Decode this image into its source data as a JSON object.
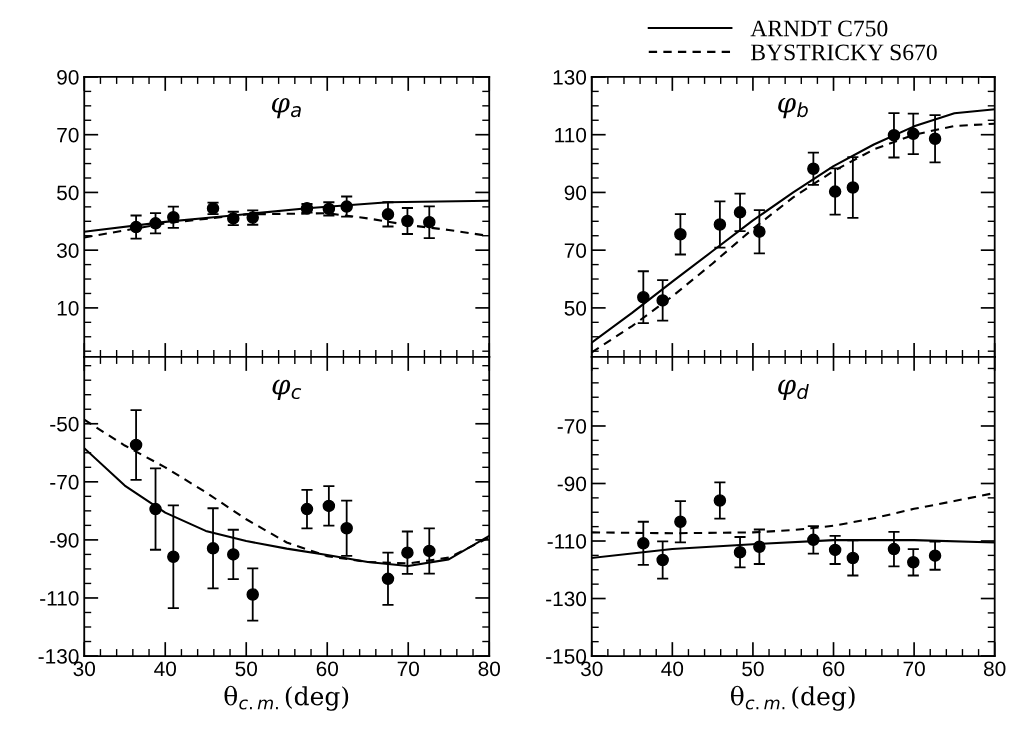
{
  "chart_data": [
    {
      "type": "scatter",
      "title": "φ$_{a}$",
      "xlim": [
        30,
        80
      ],
      "xticks": [
        30,
        40,
        50,
        60,
        70,
        80
      ],
      "ylim": [
        -7,
        90
      ],
      "yticks": [
        10,
        30,
        50,
        70,
        90
      ],
      "tick_labels": "y",
      "grid": false,
      "legend": false,
      "series": [
        {
          "marker": "circle",
          "color": "#000000",
          "x": [
            36.4,
            38.8,
            41.0,
            45.9,
            48.4,
            50.8,
            57.5,
            60.2,
            62.4,
            67.5,
            69.9,
            72.6
          ],
          "values": [
            38.0,
            39.3,
            41.4,
            44.5,
            41.0,
            41.3,
            44.5,
            44.3,
            45.1,
            42.4,
            40.1,
            39.7
          ],
          "errors": [
            4,
            3.5,
            3.7,
            2,
            2.3,
            2.5,
            1.5,
            2.3,
            3.5,
            4.2,
            4.5,
            5.5
          ]
        },
        {
          "type": "line",
          "line_style": "solid",
          "color": "#000000",
          "x": [
            30,
            40,
            46,
            57.5,
            67.5,
            80
          ],
          "values": [
            36.4,
            39.8,
            41.4,
            44.5,
            46.6,
            47.1
          ]
        },
        {
          "type": "line",
          "line_style": "dashed",
          "color": "#000000",
          "x": [
            30,
            40,
            50,
            60,
            65,
            70,
            75,
            80
          ],
          "values": [
            34.4,
            39.3,
            42.4,
            42.8,
            41.0,
            38.7,
            37.0,
            34.9
          ]
        }
      ]
    },
    {
      "type": "scatter",
      "title": "φ$_{b}$",
      "xlim": [
        30,
        80
      ],
      "xticks": [
        30,
        40,
        50,
        60,
        70,
        80
      ],
      "ylim": [
        33,
        130
      ],
      "yticks": [
        50,
        70,
        90,
        110,
        130
      ],
      "tick_labels": "y",
      "grid": false,
      "legend": "top",
      "series": [
        {
          "marker": "circle",
          "color": "#000000",
          "x": [
            36.4,
            38.8,
            41.0,
            45.9,
            48.4,
            50.8,
            57.5,
            60.2,
            62.4,
            67.5,
            69.9,
            72.6
          ],
          "values": [
            53.7,
            52.6,
            75.5,
            78.9,
            83.1,
            76.4,
            98.2,
            90.3,
            91.7,
            109.8,
            110.3,
            108.6
          ],
          "errors": [
            9,
            7,
            7,
            8,
            6.5,
            7.5,
            5.6,
            8,
            10.5,
            7.7,
            7,
            8.2
          ]
        },
        {
          "type": "line",
          "name": "ARNDT C750",
          "line_style": "solid",
          "color": "#000000",
          "x": [
            30,
            35,
            40,
            45,
            50,
            55,
            60,
            65,
            70,
            75,
            80
          ],
          "values": [
            38.0,
            48.3,
            59.1,
            69.7,
            80.3,
            90.0,
            99.1,
            106.6,
            112.9,
            117.4,
            118.8
          ]
        },
        {
          "type": "line",
          "name": "BYSTRICKY S670",
          "line_style": "dashed",
          "color": "#000000",
          "x": [
            30,
            35,
            40,
            45,
            50,
            55,
            60,
            65,
            70,
            75,
            80
          ],
          "values": [
            34.6,
            43.7,
            54.0,
            65.4,
            77.4,
            88.3,
            97.4,
            104.9,
            110.0,
            113.0,
            113.8
          ]
        }
      ]
    },
    {
      "type": "scatter",
      "title": "φ$_{c}$",
      "xlabel": "θ$_{c.m.}$(deg)",
      "xlim": [
        30,
        80
      ],
      "xticks": [
        30,
        40,
        50,
        60,
        70,
        80
      ],
      "ylim": [
        -130,
        -27
      ],
      "yticks": [
        -130,
        -110,
        -90,
        -70,
        -50
      ],
      "grid": false,
      "legend": false,
      "series": [
        {
          "marker": "circle",
          "color": "#000000",
          "x": [
            36.4,
            38.8,
            41.0,
            45.9,
            48.4,
            50.8,
            57.5,
            60.2,
            62.4,
            67.5,
            69.9,
            72.6
          ],
          "values": [
            -57.3,
            -79.4,
            -95.8,
            -92.9,
            -95.0,
            -108.8,
            -79.4,
            -78.3,
            -86.0,
            -103.4,
            -94.4,
            -93.8
          ],
          "errors": [
            12,
            14,
            17.7,
            13.8,
            8.5,
            9,
            6.6,
            6.8,
            9.5,
            9,
            7.3,
            7.8
          ]
        },
        {
          "type": "line",
          "line_style": "solid",
          "color": "#000000",
          "x": [
            30,
            35,
            40,
            45,
            50,
            55,
            60,
            65,
            70,
            75,
            80
          ],
          "values": [
            -58.4,
            -71.3,
            -80.6,
            -86.9,
            -90.4,
            -93.0,
            -95.2,
            -97.6,
            -99.0,
            -96.7,
            -88.6
          ]
        },
        {
          "type": "line",
          "line_style": "dashed",
          "color": "#000000",
          "x": [
            30,
            35,
            40,
            45,
            50,
            55,
            60,
            65,
            70,
            75,
            80
          ],
          "values": [
            -48.6,
            -57.5,
            -65.0,
            -73.6,
            -82.9,
            -90.9,
            -95.6,
            -97.6,
            -98.1,
            -96.1,
            -89.2
          ]
        }
      ]
    },
    {
      "type": "scatter",
      "title": "φ$_{d}$",
      "xlabel": "θ$_{c.m.}$(deg)",
      "xlim": [
        30,
        80
      ],
      "xticks": [
        30,
        40,
        50,
        60,
        70,
        80
      ],
      "ylim": [
        -150,
        -46
      ],
      "yticks": [
        -150,
        -130,
        -110,
        -90,
        -70
      ],
      "grid": false,
      "legend": false,
      "series": [
        {
          "marker": "circle",
          "color": "#000000",
          "x": [
            36.4,
            38.8,
            41.0,
            45.9,
            48.4,
            50.8,
            57.5,
            60.2,
            62.4,
            67.5,
            69.9,
            72.6
          ],
          "values": [
            -110.8,
            -116.6,
            -103.3,
            -95.9,
            -113.9,
            -112.0,
            -109.6,
            -113.1,
            -115.9,
            -112.8,
            -117.4,
            -115.1
          ],
          "errors": [
            7.5,
            6.5,
            7.2,
            6.3,
            5.3,
            6,
            4.8,
            4.9,
            6.1,
            6,
            4.6,
            4.9
          ]
        },
        {
          "type": "line",
          "line_style": "solid",
          "color": "#000000",
          "x": [
            30,
            40,
            50,
            60,
            70,
            80
          ],
          "values": [
            -115.9,
            -112.8,
            -111.1,
            -109.7,
            -109.7,
            -110.5
          ]
        },
        {
          "type": "line",
          "line_style": "dashed",
          "color": "#000000",
          "x": [
            30,
            40,
            50,
            55,
            60,
            65,
            70,
            75,
            80
          ],
          "values": [
            -107.0,
            -107.3,
            -107.0,
            -106.2,
            -104.7,
            -102.1,
            -98.8,
            -96.1,
            -93.3
          ]
        }
      ]
    }
  ]
}
